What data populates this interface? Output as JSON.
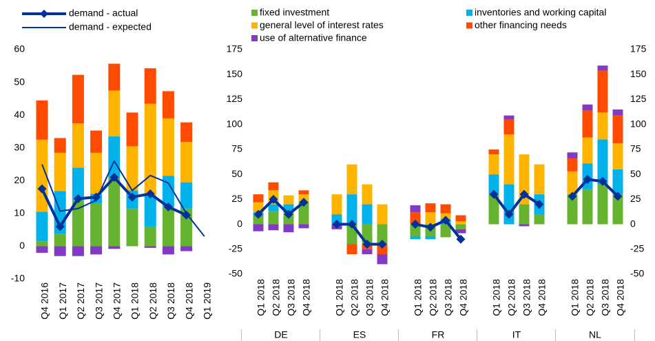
{
  "chart_data": [
    {
      "type": "bar",
      "stacked": true,
      "categories": [
        "Q4 2016",
        "Q1 2017",
        "Q2 2017",
        "Q3 2017",
        "Q4 2017",
        "Q1 2018",
        "Q2 2018",
        "Q3 2018",
        "Q4 2018",
        "Q1 2019"
      ],
      "ylim": [
        -10,
        60
      ],
      "yticks": [
        -10,
        0,
        10,
        20,
        30,
        40,
        50,
        60
      ],
      "series": [
        {
          "name": "fixed investment",
          "color": "#65b32e",
          "values": [
            1.5,
            3.8,
            14,
            13,
            21,
            11.5,
            6,
            12,
            11.5,
            null
          ]
        },
        {
          "name": "inventories and working capital",
          "color": "#00b1ea",
          "values": [
            9,
            13,
            10,
            3,
            12.5,
            5.5,
            9.5,
            9.5,
            8,
            null
          ]
        },
        {
          "name": "general level of interest rates",
          "color": "#ffb400",
          "values": [
            22,
            11.7,
            13.5,
            12.5,
            14,
            13.5,
            28,
            17.5,
            12.3,
            null
          ]
        },
        {
          "name": "other financing needs",
          "color": "#ff4b00",
          "values": [
            12,
            4.5,
            14.8,
            6.8,
            8.2,
            10.3,
            10.8,
            8.3,
            6,
            null
          ]
        },
        {
          "name": "use of alternative finance",
          "color": "#8139c6",
          "values": [
            -2,
            -3,
            -3,
            -2.5,
            -0.8,
            0,
            -0.5,
            -2.5,
            -1.5,
            null
          ]
        },
        {
          "name": "demand - actual",
          "type": "line",
          "marker": "diamond",
          "color": "#003299",
          "values": [
            17.5,
            6,
            14.5,
            15,
            21,
            15,
            16,
            12,
            9.5,
            null
          ]
        },
        {
          "name": "demand - expected",
          "type": "line",
          "color": "#003299",
          "values": [
            25,
            10.7,
            11.5,
            14,
            26,
            17,
            21.6,
            19.3,
            10,
            3
          ]
        }
      ]
    },
    {
      "type": "bar",
      "stacked": true,
      "groups": [
        "DE",
        "ES",
        "FR",
        "IT",
        "NL"
      ],
      "categories": [
        "Q1 2018",
        "Q2 2018",
        "Q3 2018",
        "Q4 2018",
        "Q1 2018",
        "Q2 2018",
        "Q3 2018",
        "Q4 2018",
        "Q1 2018",
        "Q2 2018",
        "Q3 2018",
        "Q4 2018",
        "Q1 2018",
        "Q2 2018",
        "Q3 2018",
        "Q4 2018",
        "Q1 2018",
        "Q2 2018",
        "Q3 2018",
        "Q4 2018"
      ],
      "ylim": [
        -50,
        175
      ],
      "yticks": [
        -50,
        -25,
        0,
        25,
        50,
        75,
        100,
        125,
        150,
        175
      ],
      "series": [
        {
          "name": "fixed investment",
          "color": "#65b32e",
          "values": [
            8,
            13,
            12,
            23,
            0,
            -20,
            -20,
            -20,
            -12,
            -12,
            -13,
            -5,
            30,
            0,
            20,
            10,
            30,
            35,
            40,
            30
          ]
        },
        {
          "name": "inventories and working capital",
          "color": "#00b1ea",
          "values": [
            4,
            7,
            8,
            0,
            10,
            30,
            20,
            0,
            -3,
            -3,
            5,
            0,
            20,
            40,
            0,
            20,
            0,
            26,
            45,
            25
          ]
        },
        {
          "name": "general level of interest rates",
          "color": "#ffb400",
          "values": [
            10,
            14,
            9,
            7,
            20,
            30,
            20,
            20,
            0,
            12,
            6,
            3,
            20,
            50,
            50,
            30,
            23,
            26,
            27,
            26
          ]
        },
        {
          "name": "other financing needs",
          "color": "#ff4b00",
          "values": [
            8,
            8,
            0,
            4,
            0,
            -10,
            -5,
            -10,
            12,
            9,
            9,
            6,
            5,
            15,
            0,
            0,
            13,
            27,
            42,
            28
          ]
        },
        {
          "name": "use of alternative finance",
          "color": "#8139c6",
          "values": [
            -7,
            -6,
            -8,
            -4,
            -5,
            0,
            -5,
            -10,
            7,
            0,
            0,
            -4,
            0,
            4,
            -2,
            0,
            6,
            6,
            5,
            6
          ]
        },
        {
          "name": "demand - actual",
          "type": "line",
          "marker": "diamond",
          "color": "#003299",
          "values": [
            10,
            25,
            10,
            22,
            0,
            0,
            -20,
            -20,
            0,
            -3,
            4,
            -15,
            30,
            10,
            30,
            20,
            28,
            45,
            43,
            28
          ]
        }
      ]
    }
  ]
}
